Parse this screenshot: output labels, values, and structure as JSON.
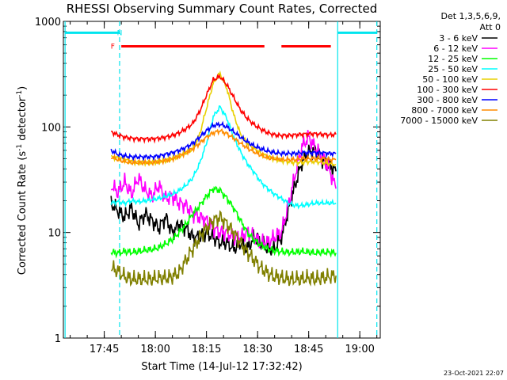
{
  "chart_data": {
    "type": "line",
    "title": "RHESSI Observing Summary Count Rates, Corrected",
    "ylabel": "Corrected Count Rate (s",
    "ylabel_sup1": "-1",
    "ylabel_mid": " detector",
    "ylabel_sup2": "-1",
    "ylabel_end": ")",
    "xlabel": "Start Time (14-Jul-12 17:32:42)",
    "timestamp": "23-Oct-2021 22:07",
    "y_scale": "log",
    "ylim": [
      1,
      1000
    ],
    "xlim_minutes_after_1730": [
      3,
      96
    ],
    "x_ticks": [
      {
        "m": 15,
        "label": "17:45"
      },
      {
        "m": 30,
        "label": "18:00"
      },
      {
        "m": 45,
        "label": "18:15"
      },
      {
        "m": 60,
        "label": "18:30"
      },
      {
        "m": 75,
        "label": "18:45"
      },
      {
        "m": 90,
        "label": "19:00"
      }
    ],
    "y_ticks": [
      {
        "v": 1,
        "label": "1"
      },
      {
        "v": 10,
        "label": "10"
      },
      {
        "v": 100,
        "label": "100"
      },
      {
        "v": 1000,
        "label": "1000"
      }
    ],
    "legend_header": [
      "Det 1,3,5,6,9,",
      "Att 0"
    ],
    "legend_placement": "right",
    "flags": [
      {
        "label": "F",
        "color": "#ff0000",
        "x": 17.5,
        "y": 580
      },
      {
        "label": "N",
        "color": "#00e5ee",
        "x": 19.5,
        "y": 780
      }
    ],
    "eclipse_bars": [
      {
        "x0": 3.5,
        "x1": 19.5,
        "y": 780,
        "color": "#00e5ee"
      },
      {
        "x0": 83.5,
        "x1": 95,
        "y": 780,
        "color": "#00e5ee"
      }
    ],
    "flare_bars": [
      {
        "x0": 20,
        "x1": 62,
        "y": 580,
        "color": "#ff0000"
      },
      {
        "x0": 67,
        "x1": 81.5,
        "y": 580,
        "color": "#ff0000"
      }
    ],
    "vlines": [
      {
        "x": 3.5,
        "style": "solid",
        "color": "#00e5ee"
      },
      {
        "x": 19.5,
        "style": "dashed",
        "color": "#00e5ee"
      },
      {
        "x": 83.5,
        "style": "solid",
        "color": "#00e5ee"
      },
      {
        "x": 95,
        "style": "dashed",
        "color": "#00e5ee"
      }
    ],
    "series": [
      {
        "name": "3 - 6 keV",
        "color": "#000000",
        "x": [
          17,
          19,
          21,
          23,
          25,
          27,
          29,
          31,
          33,
          35,
          37,
          39,
          41,
          43,
          45,
          47,
          49,
          51,
          53,
          55,
          57,
          59,
          61,
          63,
          65,
          67,
          69,
          71,
          73,
          75,
          77,
          79,
          81,
          83
        ],
        "y": [
          19,
          16,
          14,
          17,
          12,
          15,
          13,
          11,
          14,
          10,
          12,
          11,
          9,
          9,
          10,
          9,
          8,
          8,
          7,
          8,
          7,
          9,
          8,
          7,
          7,
          9,
          16,
          28,
          46,
          58,
          60,
          49,
          44,
          38
        ]
      },
      {
        "name": "6 - 12 keV",
        "color": "#ff00ff",
        "x": [
          17,
          19,
          21,
          23,
          25,
          27,
          29,
          31,
          33,
          35,
          37,
          39,
          41,
          43,
          45,
          47,
          49,
          51,
          53,
          55,
          57,
          59,
          61,
          63,
          65,
          67,
          69,
          71,
          73,
          75,
          77,
          79,
          81,
          83
        ],
        "y": [
          28,
          24,
          30,
          23,
          33,
          25,
          22,
          28,
          21,
          22,
          19,
          18,
          15,
          14,
          13,
          11,
          10,
          10,
          9,
          9,
          10,
          9,
          8,
          8,
          9,
          10,
          18,
          35,
          65,
          80,
          62,
          52,
          40,
          26
        ]
      },
      {
        "name": "12 - 25 keV",
        "color": "#00ff00",
        "x": [
          17,
          19,
          21,
          23,
          25,
          27,
          29,
          31,
          33,
          35,
          37,
          39,
          41,
          43,
          45,
          47,
          49,
          51,
          53,
          55,
          57,
          59,
          61,
          63,
          65,
          67,
          69,
          71,
          73,
          75,
          77,
          79,
          81,
          83
        ],
        "y": [
          6.5,
          6.4,
          6.6,
          6.5,
          6.6,
          6.8,
          6.9,
          7.2,
          7.8,
          8.6,
          10,
          12,
          15,
          18,
          22,
          26,
          25,
          21,
          17,
          13,
          10,
          8.5,
          7.6,
          7,
          6.7,
          6.6,
          6.5,
          6.5,
          6.6,
          6.5,
          6.4,
          6.5,
          6.5,
          6.4
        ]
      },
      {
        "name": "25 - 50 keV",
        "color": "#00ffff",
        "x": [
          17,
          19,
          21,
          23,
          25,
          27,
          29,
          31,
          33,
          35,
          37,
          39,
          41,
          43,
          45,
          47,
          49,
          51,
          53,
          55,
          57,
          59,
          61,
          63,
          65,
          67,
          69,
          71,
          73,
          75,
          77,
          79,
          81,
          83
        ],
        "y": [
          19,
          19.5,
          19,
          20,
          19.5,
          20,
          20.5,
          21,
          22,
          23,
          25,
          28,
          33,
          45,
          70,
          125,
          155,
          120,
          80,
          58,
          45,
          37,
          30,
          26,
          23,
          21,
          19,
          18,
          18,
          18.5,
          19,
          19,
          19,
          19
        ]
      },
      {
        "name": "50 - 100 keV",
        "color": "#e8d000",
        "x": [
          17,
          19,
          21,
          23,
          25,
          27,
          29,
          31,
          33,
          35,
          37,
          39,
          41,
          43,
          45,
          47,
          49,
          51,
          53,
          55,
          57,
          59,
          61,
          63,
          65,
          67,
          69,
          71,
          73,
          75,
          77,
          79,
          81,
          83
        ],
        "y": [
          52,
          51,
          49,
          47,
          46,
          46,
          46,
          47,
          48,
          50,
          53,
          57,
          62,
          85,
          150,
          260,
          320,
          230,
          130,
          85,
          70,
          62,
          56,
          52,
          50,
          48,
          47,
          46,
          46,
          47,
          47,
          46,
          45,
          44
        ]
      },
      {
        "name": "100 - 300 keV",
        "color": "#ff0000",
        "x": [
          17,
          19,
          21,
          23,
          25,
          27,
          29,
          31,
          33,
          35,
          37,
          39,
          41,
          43,
          45,
          47,
          49,
          51,
          53,
          55,
          57,
          59,
          61,
          63,
          65,
          67,
          69,
          71,
          73,
          75,
          77,
          79,
          81,
          83
        ],
        "y": [
          90,
          84,
          80,
          78,
          77,
          77,
          77,
          78,
          80,
          83,
          88,
          96,
          108,
          140,
          200,
          280,
          300,
          250,
          190,
          145,
          120,
          105,
          95,
          88,
          84,
          83,
          83,
          84,
          85,
          86,
          86,
          85,
          84,
          85
        ]
      },
      {
        "name": "300 - 800 keV",
        "color": "#0000ff",
        "x": [
          17,
          19,
          21,
          23,
          25,
          27,
          29,
          31,
          33,
          35,
          37,
          39,
          41,
          43,
          45,
          47,
          49,
          51,
          53,
          55,
          57,
          59,
          61,
          63,
          65,
          67,
          69,
          71,
          73,
          75,
          77,
          79,
          81,
          83
        ],
        "y": [
          60,
          55,
          53,
          52,
          52,
          52,
          52,
          53,
          55,
          57,
          60,
          64,
          70,
          80,
          92,
          103,
          106,
          100,
          90,
          80,
          72,
          66,
          62,
          59,
          57,
          56,
          56,
          56,
          57,
          57,
          57,
          57,
          56,
          56
        ]
      },
      {
        "name": "800 - 7000 keV",
        "color": "#ff8c00",
        "x": [
          17,
          19,
          21,
          23,
          25,
          27,
          29,
          31,
          33,
          35,
          37,
          39,
          41,
          43,
          45,
          47,
          49,
          51,
          53,
          55,
          57,
          59,
          61,
          63,
          65,
          67,
          69,
          71,
          73,
          75,
          77,
          79,
          81,
          83
        ],
        "y": [
          52,
          49,
          47,
          46,
          46,
          46,
          46,
          47,
          48,
          50,
          53,
          57,
          62,
          70,
          80,
          88,
          92,
          86,
          78,
          70,
          63,
          58,
          54,
          51,
          50,
          49,
          49,
          49,
          50,
          50,
          50,
          50,
          49,
          49
        ]
      },
      {
        "name": "7000 - 15000 keV",
        "color": "#808000",
        "x": [
          17,
          19,
          21,
          23,
          25,
          27,
          29,
          31,
          33,
          35,
          37,
          39,
          41,
          43,
          45,
          47,
          49,
          51,
          53,
          55,
          57,
          59,
          61,
          63,
          65,
          67,
          69,
          71,
          73,
          75,
          77,
          79,
          81,
          83
        ],
        "y": [
          4.6,
          4.3,
          3.8,
          3.6,
          3.6,
          3.6,
          3.6,
          3.7,
          3.7,
          3.8,
          4.2,
          5.5,
          7,
          9,
          11,
          13,
          14,
          12,
          10,
          8,
          6.5,
          5.5,
          4.6,
          4.1,
          3.8,
          3.7,
          3.6,
          3.6,
          3.6,
          3.7,
          3.6,
          3.7,
          3.8,
          3.9
        ]
      }
    ]
  }
}
